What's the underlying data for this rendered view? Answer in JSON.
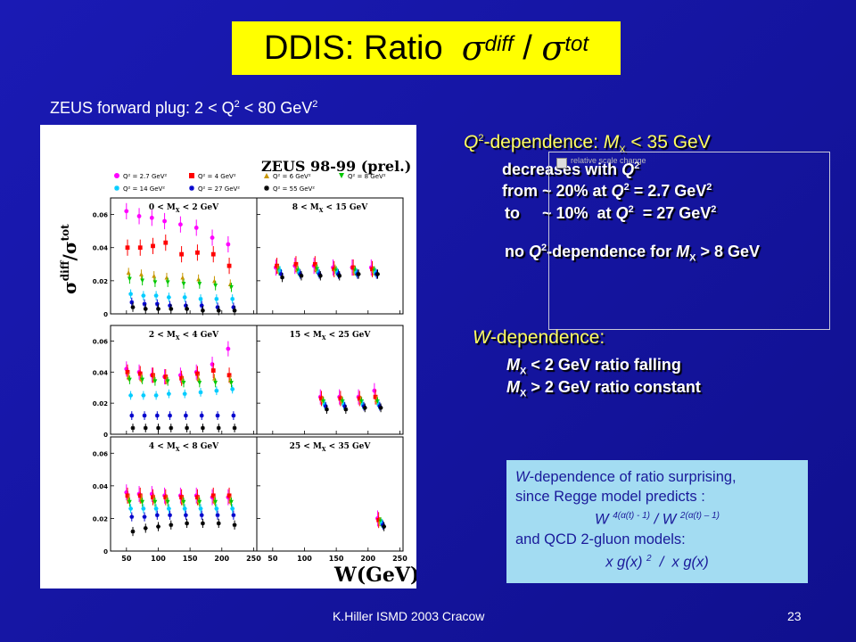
{
  "title": {
    "prefix": "DDIS: Ratio",
    "sigma": "σ",
    "diff": "diff",
    "slash": "/",
    "tot": "tot"
  },
  "subtitle": {
    "text": "ZEUS forward plug:  2 < Q",
    "sup": "2",
    "rest": " < 80 GeV",
    "sup2": "2"
  },
  "figure": {
    "label": "ZEUS 98-99 (prel.)",
    "ylabel_sigma": "σ",
    "ylabel_diff": "diff",
    "ylabel_slash": "/σ",
    "ylabel_tot": "tot",
    "xlabel": "W(GeV)",
    "legend": [
      {
        "label": "Q² = 2.7 GeV²",
        "color": "#ff00ff",
        "marker": "circle"
      },
      {
        "label": "Q² = 4 GeV²",
        "color": "#ff0000",
        "marker": "square"
      },
      {
        "label": "Q² = 6 GeV²",
        "color": "#c89600",
        "marker": "triangle"
      },
      {
        "label": "Q² = 8 GeV²",
        "color": "#00c800",
        "marker": "triangle-down"
      },
      {
        "label": "Q² = 14 GeV²",
        "color": "#00ccff",
        "marker": "star"
      },
      {
        "label": "Q² = 27 GeV²",
        "color": "#0000cc",
        "marker": "star"
      },
      {
        "label": "Q² = 55 GeV²",
        "color": "#000000",
        "marker": "star"
      }
    ],
    "panels": [
      {
        "label": "0 < M_X < 2 GeV",
        "main": "0 < M",
        "sub": "X",
        "tail": " < 2 GeV"
      },
      {
        "label": "8 < M_X < 15 GeV",
        "main": "8 < M",
        "sub": "X",
        "tail": " < 15 GeV"
      },
      {
        "label": "2 < M_X < 4 GeV",
        "main": "2 < M",
        "sub": "X",
        "tail": " < 4 GeV"
      },
      {
        "label": "15 < M_X < 25 GeV",
        "main": "15 < M",
        "sub": "X",
        "tail": " < 25 GeV"
      },
      {
        "label": "4 < M_X < 8 GeV",
        "main": "4 < M",
        "sub": "X",
        "tail": " < 8 GeV"
      },
      {
        "label": "25 < M_X < 35 GeV",
        "main": "25 < M",
        "sub": "X",
        "tail": " < 35 GeV"
      }
    ],
    "y_ticks": [
      "0.06",
      "0.04",
      "0.02",
      "0"
    ],
    "x_ticks": [
      "50",
      "100",
      "150",
      "200",
      "250"
    ]
  },
  "chart_data": {
    "type": "scatter",
    "x_unit": "W (GeV)",
    "ylim": [
      0,
      0.07
    ],
    "xlim": [
      25,
      255
    ],
    "panels": [
      {
        "name": "0 < MX < 2 GeV",
        "x": [
          55,
          75,
          95,
          115,
          140,
          165,
          190,
          215
        ],
        "series": [
          {
            "name": "Q² = 2.7 GeV²",
            "y": [
              0.062,
              0.059,
              0.058,
              0.056,
              0.054,
              0.052,
              0.046,
              0.042
            ]
          },
          {
            "name": "Q² = 4 GeV²",
            "y": [
              0.04,
              0.04,
              0.041,
              0.043,
              0.036,
              0.037,
              0.036,
              0.029
            ]
          },
          {
            "name": "Q² = 6 GeV²",
            "y": [
              0.025,
              0.024,
              0.023,
              0.022,
              0.022,
              0.021,
              0.02,
              0.018
            ]
          },
          {
            "name": "Q² = 8 GeV²",
            "y": [
              0.021,
              0.02,
              0.019,
              0.019,
              0.018,
              0.018,
              0.017,
              0.016
            ]
          },
          {
            "name": "Q² = 14 GeV²",
            "y": [
              0.012,
              0.011,
              0.011,
              0.01,
              0.01,
              0.009,
              0.009,
              0.009
            ]
          },
          {
            "name": "Q² = 27 GeV²",
            "y": [
              0.007,
              0.006,
              0.006,
              0.005,
              0.005,
              0.005,
              0.004,
              0.004
            ]
          },
          {
            "name": "Q² = 55 GeV²",
            "y": [
              0.004,
              0.003,
              0.003,
              0.003,
              0.003,
              0.002,
              0.002,
              0.002
            ]
          }
        ]
      },
      {
        "name": "8 < MX < 15 GeV",
        "x": [
          60,
          90,
          120,
          150,
          180,
          210
        ],
        "series": [
          {
            "name": "Q² = 2.7 GeV²",
            "y": [
              0.028,
              0.029,
              0.029,
              0.028,
              0.028,
              0.028
            ]
          },
          {
            "name": "Q² = 4 GeV²",
            "y": [
              0.029,
              0.03,
              0.03,
              0.027,
              0.028,
              0.027
            ]
          },
          {
            "name": "Q² = 6 GeV²",
            "y": [
              0.027,
              0.027,
              0.027,
              0.027,
              0.026,
              0.026
            ]
          },
          {
            "name": "Q² = 8 GeV²",
            "y": [
              0.026,
              0.026,
              0.027,
              0.026,
              0.026,
              0.026
            ]
          },
          {
            "name": "Q² = 14 GeV²",
            "y": [
              0.026,
              0.025,
              0.025,
              0.025,
              0.025,
              0.025
            ]
          },
          {
            "name": "Q² = 27 GeV²",
            "y": [
              0.024,
              0.024,
              0.024,
              0.024,
              0.024,
              0.024
            ]
          },
          {
            "name": "Q² = 55 GeV²",
            "y": [
              0.022,
              0.023,
              0.023,
              0.023,
              0.024,
              0.024
            ]
          }
        ]
      },
      {
        "name": "2 < MX < 4 GeV",
        "x": [
          55,
          75,
          95,
          115,
          140,
          165,
          190,
          215
        ],
        "series": [
          {
            "name": "Q² = 2.7 GeV²",
            "y": [
              0.042,
              0.04,
              0.038,
              0.037,
              0.038,
              0.04,
              0.045,
              0.055
            ]
          },
          {
            "name": "Q² = 4 GeV²",
            "y": [
              0.04,
              0.039,
              0.038,
              0.037,
              0.036,
              0.039,
              0.041,
              0.038
            ]
          },
          {
            "name": "Q² = 6 GeV²",
            "y": [
              0.037,
              0.036,
              0.036,
              0.035,
              0.035,
              0.036,
              0.036,
              0.035
            ]
          },
          {
            "name": "Q² = 8 GeV²",
            "y": [
              0.035,
              0.035,
              0.034,
              0.034,
              0.033,
              0.033,
              0.033,
              0.033
            ]
          },
          {
            "name": "Q² = 14 GeV²",
            "y": [
              0.025,
              0.025,
              0.025,
              0.026,
              0.026,
              0.027,
              0.028,
              0.029
            ]
          },
          {
            "name": "Q² = 27 GeV²",
            "y": [
              0.012,
              0.012,
              0.012,
              0.012,
              0.012,
              0.012,
              0.012,
              0.012
            ]
          },
          {
            "name": "Q² = 55 GeV²",
            "y": [
              0.004,
              0.004,
              0.004,
              0.004,
              0.004,
              0.004,
              0.004,
              0.004
            ]
          }
        ]
      },
      {
        "name": "15 < MX < 25 GeV",
        "x": [
          130,
          160,
          190,
          215
        ],
        "series": [
          {
            "name": "Q² = 2.7 GeV²",
            "y": [
              0.024,
              0.024,
              0.024,
              0.028
            ]
          },
          {
            "name": "Q² = 4 GeV²",
            "y": [
              0.023,
              0.023,
              0.023,
              0.024
            ]
          },
          {
            "name": "Q² = 6 GeV²",
            "y": [
              0.022,
              0.022,
              0.022,
              0.022
            ]
          },
          {
            "name": "Q² = 8 GeV²",
            "y": [
              0.021,
              0.021,
              0.021,
              0.021
            ]
          },
          {
            "name": "Q² = 14 GeV²",
            "y": [
              0.019,
              0.019,
              0.019,
              0.019
            ]
          },
          {
            "name": "Q² = 27 GeV²",
            "y": [
              0.018,
              0.018,
              0.018,
              0.018
            ]
          },
          {
            "name": "Q² = 55 GeV²",
            "y": [
              0.016,
              0.016,
              0.017,
              0.017
            ]
          }
        ]
      },
      {
        "name": "4 < MX < 8 GeV",
        "x": [
          55,
          75,
          95,
          115,
          140,
          165,
          190,
          215
        ],
        "series": [
          {
            "name": "Q² = 2.7 GeV²",
            "y": [
              0.036,
              0.035,
              0.035,
              0.034,
              0.034,
              0.034,
              0.033,
              0.033
            ]
          },
          {
            "name": "Q² = 4 GeV²",
            "y": [
              0.034,
              0.034,
              0.033,
              0.033,
              0.033,
              0.033,
              0.034,
              0.034
            ]
          },
          {
            "name": "Q² = 6 GeV²",
            "y": [
              0.032,
              0.032,
              0.032,
              0.032,
              0.031,
              0.031,
              0.031,
              0.031
            ]
          },
          {
            "name": "Q² = 8 GeV²",
            "y": [
              0.03,
              0.03,
              0.03,
              0.03,
              0.03,
              0.03,
              0.03,
              0.03
            ]
          },
          {
            "name": "Q² = 14 GeV²",
            "y": [
              0.026,
              0.026,
              0.026,
              0.026,
              0.026,
              0.026,
              0.026,
              0.026
            ]
          },
          {
            "name": "Q² = 27 GeV²",
            "y": [
              0.021,
              0.021,
              0.022,
              0.022,
              0.022,
              0.022,
              0.022,
              0.022
            ]
          },
          {
            "name": "Q² = 55 GeV²",
            "y": [
              0.012,
              0.014,
              0.015,
              0.016,
              0.017,
              0.017,
              0.017,
              0.016
            ]
          }
        ]
      },
      {
        "name": "25 < MX < 35 GeV",
        "x": [
          220
        ],
        "series": [
          {
            "name": "Q² = 2.7 GeV²",
            "y": [
              0.02
            ]
          },
          {
            "name": "Q² = 4 GeV²",
            "y": [
              0.019
            ]
          },
          {
            "name": "Q² = 6 GeV²",
            "y": [
              0.018
            ]
          },
          {
            "name": "Q² = 8 GeV²",
            "y": [
              0.018
            ]
          },
          {
            "name": "Q² = 14 GeV²",
            "y": [
              0.017
            ]
          },
          {
            "name": "Q² = 27 GeV²",
            "y": [
              0.016
            ]
          },
          {
            "name": "Q² = 55 GeV²",
            "y": [
              0.015
            ]
          }
        ]
      }
    ]
  },
  "q2_dep": {
    "head_a": "Q",
    "head_sup": "2",
    "head_b": "-dependence:  ",
    "head_m": "M",
    "head_sub": "X",
    "head_c": " < 35 GeV",
    "l1_a": "decreases  with ",
    "l1_q": "Q",
    "l1_sup": "2",
    "l2_a": "from ~ 20%  at ",
    "l2_q": "Q",
    "l2_sup": "2",
    "l2_b": " = 2.7 GeV",
    "l2_sup2": "2",
    "l3_a": "to     ~ 10%  at ",
    "l3_q": "Q",
    "l3_sup": "2",
    "l3_b": "  = 27 GeV",
    "l3_sup2": "2",
    "l4_a": "no ",
    "l4_q": "Q",
    "l4_sup": "2",
    "l4_b": "-dependence for ",
    "l4_m": "M",
    "l4_sub": "X",
    "l4_c": " > 8 GeV"
  },
  "ghost_note": "relative scale change",
  "w_dep": {
    "head_w": "W",
    "head_rest": "-dependence:",
    "l1_m": "M",
    "l1_sub": "X",
    "l1_rest": " < 2 GeV  ratio falling",
    "l2_m": "M",
    "l2_sub": "X",
    "l2_rest": " > 2 GeV  ratio constant"
  },
  "info": {
    "l1_w": "W",
    "l1_rest": "-dependence of ratio surprising,",
    "l2": "since Regge model predicts :",
    "l3_a": "W ",
    "l3_sup": "4(α(t) - 1)",
    "l3_b": " / W ",
    "l3_sup2": "2(α(t) – 1)",
    "l4": "and QCD 2-gluon models:",
    "l5_a": "x g(x) ",
    "l5_sup": "2",
    "l5_b": "  /  x g(x)"
  },
  "footer": {
    "left": "K.Hiller ISMD 2003   Cracow",
    "right": "23"
  }
}
